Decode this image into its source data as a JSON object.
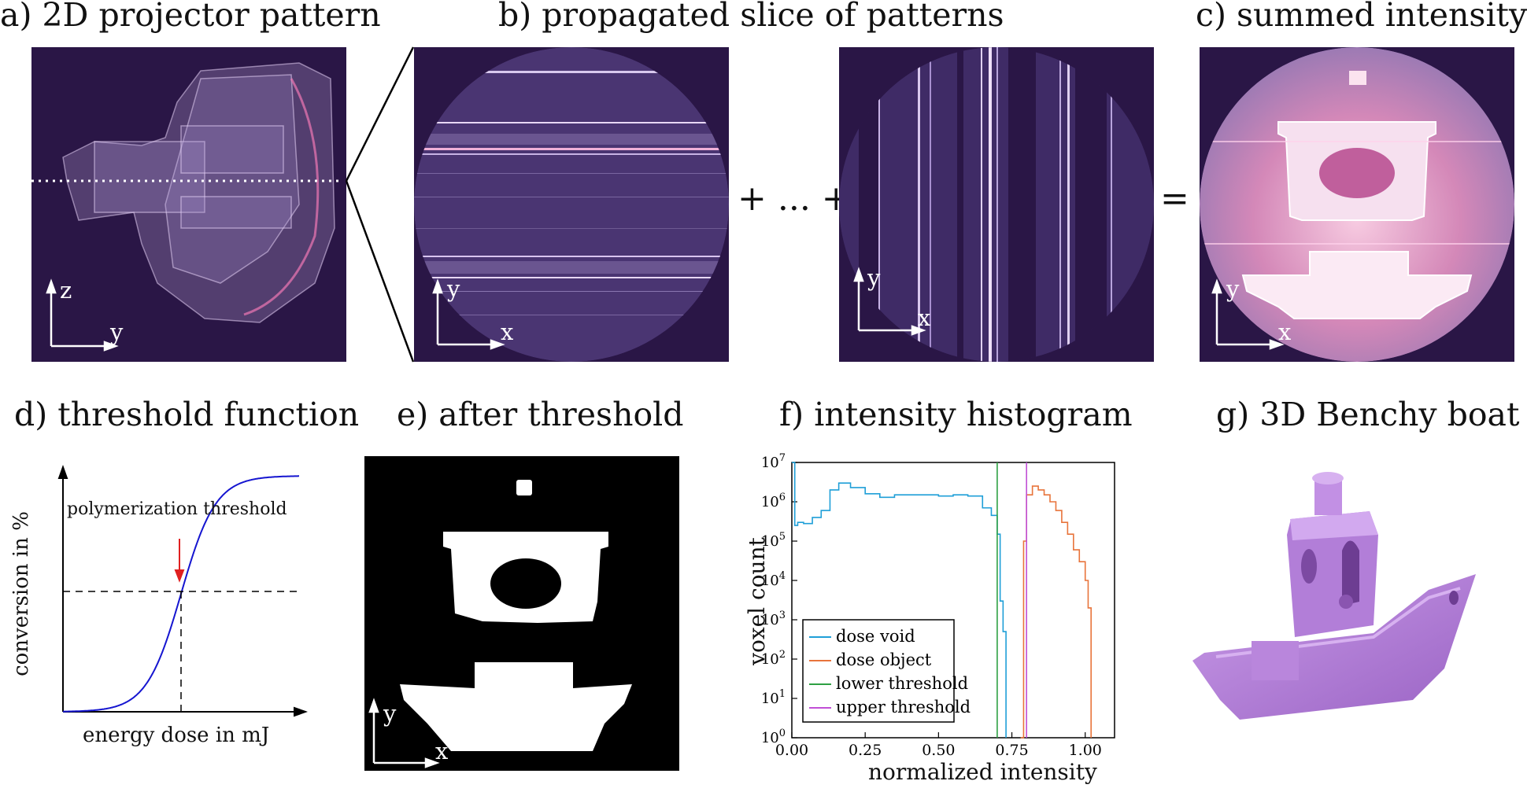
{
  "titles": {
    "a": "a) 2D projector pattern",
    "b": "b) propagated slice of patterns",
    "c": "c) summed intensity",
    "d": "d) threshold function",
    "e": "e) after threshold",
    "f": "f) intensity histogram",
    "g": "g) 3D Benchy boat"
  },
  "operators": {
    "plus1": "+ ... +",
    "equals": "="
  },
  "axes": {
    "a": {
      "vertical": "z",
      "horizontal": "y"
    },
    "b1": {
      "vertical": "y",
      "horizontal": "x"
    },
    "b2": {
      "vertical": "y",
      "horizontal": "x"
    },
    "c": {
      "vertical": "y",
      "horizontal": "x"
    },
    "e": {
      "vertical": "y",
      "horizontal": "x"
    }
  },
  "threshold_plot": {
    "xlabel": "energy dose in mJ",
    "ylabel": "conversion in %",
    "annotation": "polymerization threshold"
  },
  "colors": {
    "dark_bg": "#2a1646",
    "dose_void": "#1f9fd8",
    "dose_object": "#e8743b",
    "lower_threshold": "#2ea043",
    "upper_threshold": "#c14fd6",
    "sigmoid": "#1515d0",
    "arrow": "#e02020",
    "boat": "#b77fdc"
  },
  "chart_data": [
    {
      "type": "line",
      "title": "f) intensity histogram",
      "xlabel": "normalized intensity",
      "ylabel": "voxel count",
      "xlim": [
        0.0,
        1.1
      ],
      "ylim": [
        1,
        10000000
      ],
      "yscale": "log",
      "x_ticks": [
        "0.00",
        "0.25",
        "0.50",
        "0.75",
        "1.00"
      ],
      "y_ticks": [
        "10^0",
        "10^1",
        "10^2",
        "10^3",
        "10^4",
        "10^5",
        "10^6",
        "10^7"
      ],
      "legend_position": "bottom-left",
      "series": [
        {
          "name": "dose void",
          "color": "#1f9fd8",
          "x": [
            0.0,
            0.01,
            0.02,
            0.04,
            0.07,
            0.1,
            0.13,
            0.16,
            0.2,
            0.25,
            0.3,
            0.35,
            0.4,
            0.45,
            0.5,
            0.55,
            0.6,
            0.65,
            0.68,
            0.7,
            0.71,
            0.72,
            0.73
          ],
          "y": [
            10000000,
            250000,
            300000,
            280000,
            400000,
            600000,
            2000000,
            3000000,
            2300000,
            1600000,
            1300000,
            1500000,
            1500000,
            1500000,
            1400000,
            1500000,
            1400000,
            700000,
            450000,
            150000,
            3000,
            500,
            1
          ]
        },
        {
          "name": "dose object",
          "color": "#e8743b",
          "x": [
            0.78,
            0.79,
            0.8,
            0.82,
            0.84,
            0.86,
            0.88,
            0.9,
            0.92,
            0.94,
            0.96,
            0.98,
            1.0,
            1.01,
            1.02
          ],
          "y": [
            1,
            100000,
            1500000,
            2500000,
            2000000,
            1500000,
            1000000,
            600000,
            300000,
            150000,
            60000,
            30000,
            10000,
            2000,
            1
          ]
        },
        {
          "name": "lower threshold",
          "color": "#2ea043",
          "x": [
            0.7,
            0.7
          ],
          "y": [
            1,
            10000000
          ]
        },
        {
          "name": "upper threshold",
          "color": "#c14fd6",
          "x": [
            0.8,
            0.8
          ],
          "y": [
            1,
            10000000
          ]
        }
      ]
    }
  ]
}
